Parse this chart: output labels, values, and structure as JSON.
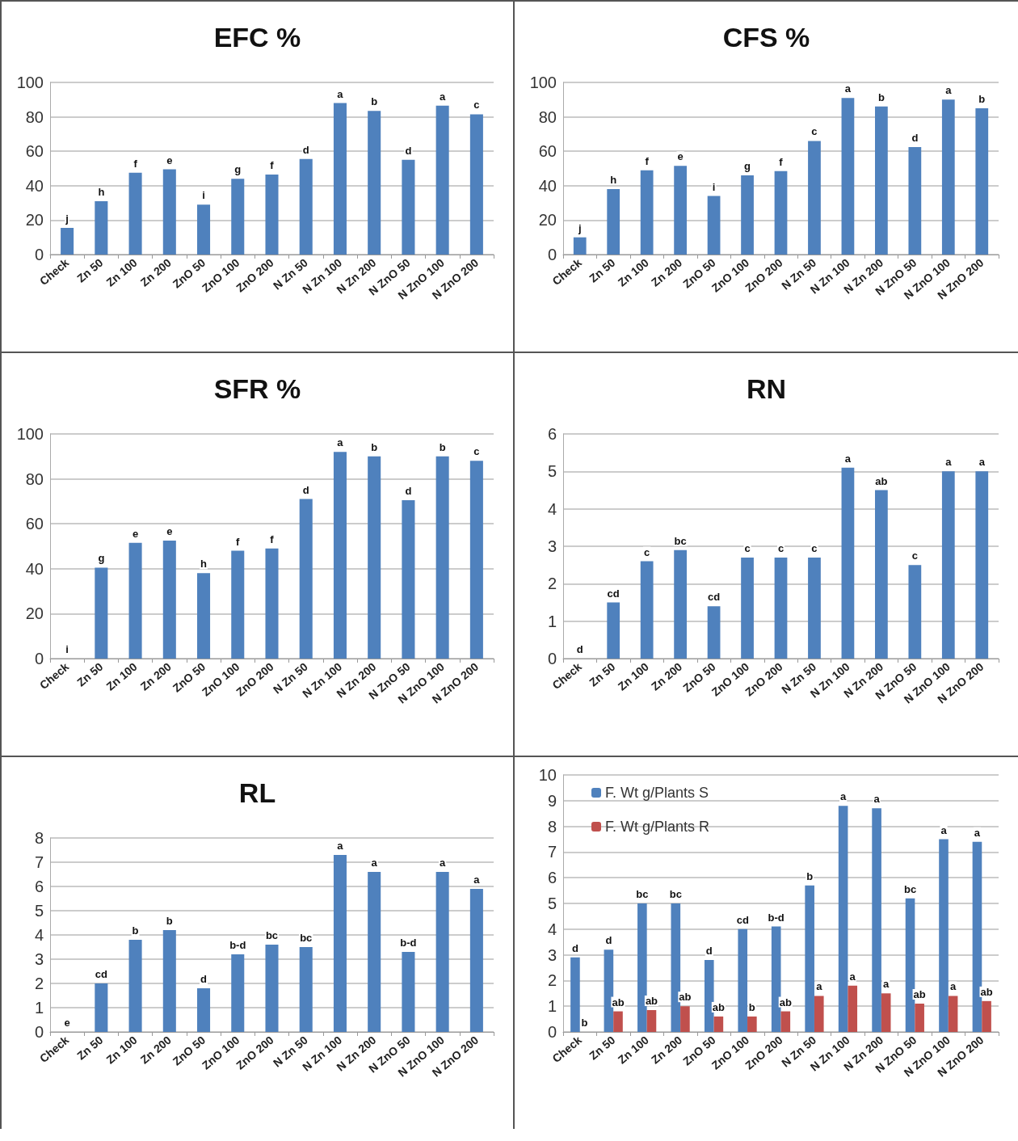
{
  "chart_data": [
    {
      "type": "bar",
      "title": "EFC %",
      "categories": [
        "Check",
        "Zn 50",
        "Zn 100",
        "Zn 200",
        "ZnO 50",
        "ZnO 100",
        "ZnO 200",
        "N Zn 50",
        "N Zn 100",
        "N Zn 200",
        "N ZnO 50",
        "N ZnO 100",
        "N ZnO 200"
      ],
      "color": "#4f81bd",
      "values": [
        15.5,
        31,
        47.5,
        49.5,
        29,
        44,
        46.5,
        55.5,
        88,
        83.5,
        55,
        86.5,
        81.5
      ],
      "value_labels": [
        "j",
        "h",
        "f",
        "e",
        "i",
        "g",
        "f",
        "d",
        "a",
        "b",
        "d",
        "a",
        "c"
      ],
      "ylim": [
        0,
        100
      ],
      "yticks": [
        0,
        20,
        40,
        60,
        80,
        100
      ],
      "grid": "y"
    },
    {
      "type": "bar",
      "title": "CFS %",
      "categories": [
        "Check",
        "Zn 50",
        "Zn 100",
        "Zn 200",
        "ZnO 50",
        "ZnO 100",
        "ZnO 200",
        "N Zn 50",
        "N Zn 100",
        "N Zn 200",
        "N ZnO 50",
        "N ZnO 100",
        "N ZnO 200"
      ],
      "color": "#4f81bd",
      "values": [
        10,
        38,
        49,
        51.5,
        34,
        46,
        48.5,
        66,
        91,
        86,
        62.5,
        90,
        85
      ],
      "value_labels": [
        "j",
        "h",
        "f",
        "e",
        "i",
        "g",
        "f",
        "c",
        "a",
        "b",
        "d",
        "a",
        "b"
      ],
      "ylim": [
        0,
        100
      ],
      "yticks": [
        0,
        20,
        40,
        60,
        80,
        100
      ],
      "grid": "y"
    },
    {
      "type": "bar",
      "title": "SFR %",
      "categories": [
        "Check",
        "Zn 50",
        "Zn 100",
        "Zn 200",
        "ZnO 50",
        "ZnO 100",
        "ZnO 200",
        "N Zn 50",
        "N Zn 100",
        "N Zn 200",
        "N ZnO 50",
        "N ZnO 100",
        "N ZnO 200"
      ],
      "color": "#4f81bd",
      "values": [
        0,
        40.5,
        51.5,
        52.5,
        38,
        48,
        49,
        71,
        92,
        90,
        70.5,
        90,
        88
      ],
      "value_labels": [
        "i",
        "g",
        "e",
        "e",
        "h",
        "f",
        "f",
        "d",
        "a",
        "b",
        "d",
        "b",
        "c"
      ],
      "ylim": [
        0,
        100
      ],
      "yticks": [
        0,
        20,
        40,
        60,
        80,
        100
      ],
      "grid": "y"
    },
    {
      "type": "bar",
      "title": "RN",
      "categories": [
        "Check",
        "Zn 50",
        "Zn 100",
        "Zn 200",
        "ZnO 50",
        "ZnO 100",
        "ZnO 200",
        "N Zn 50",
        "N Zn 100",
        "N Zn 200",
        "N ZnO 50",
        "N ZnO 100",
        "N ZnO 200"
      ],
      "color": "#4f81bd",
      "values": [
        0,
        1.5,
        2.6,
        2.9,
        1.4,
        2.7,
        2.7,
        2.7,
        5.1,
        4.5,
        2.5,
        5,
        5
      ],
      "value_labels": [
        "d",
        "cd",
        "c",
        "bc",
        "cd",
        "c",
        "c",
        "c",
        "a",
        "ab",
        "c",
        "a",
        "a"
      ],
      "ylim": [
        0,
        6
      ],
      "yticks": [
        0,
        1,
        2,
        3,
        4,
        5,
        6
      ],
      "grid": "y"
    },
    {
      "type": "bar",
      "title": "RL",
      "categories": [
        "Check",
        "Zn 50",
        "Zn 100",
        "Zn 200",
        "ZnO 50",
        "ZnO 100",
        "ZnO 200",
        "N Zn 50",
        "N Zn 100",
        "N Zn 200",
        "N ZnO 50",
        "N ZnO 100",
        "N ZnO 200"
      ],
      "color": "#4f81bd",
      "values": [
        0,
        2,
        3.8,
        4.2,
        1.8,
        3.2,
        3.6,
        3.5,
        7.3,
        6.6,
        3.3,
        6.6,
        5.9
      ],
      "value_labels": [
        "e",
        "cd",
        "b",
        "b",
        "d",
        "b-d",
        "bc",
        "bc",
        "a",
        "a",
        "b-d",
        "a",
        "a"
      ],
      "ylim": [
        0,
        8
      ],
      "yticks": [
        0,
        1,
        2,
        3,
        4,
        5,
        6,
        7,
        8
      ],
      "grid": "y"
    },
    {
      "type": "bar",
      "categories": [
        "Check",
        "Zn 50",
        "Zn 100",
        "Zn 200",
        "ZnO 50",
        "ZnO 100",
        "ZnO 200",
        "N Zn 50",
        "N Zn 100",
        "N Zn 200",
        "N ZnO 50",
        "N ZnO 100",
        "N ZnO 200"
      ],
      "series": [
        {
          "name": "F. Wt g/Plants S",
          "color": "#4f81bd",
          "values": [
            2.9,
            3.2,
            5,
            5,
            2.8,
            4,
            4.1,
            5.7,
            8.8,
            8.7,
            5.2,
            7.5,
            7.4
          ],
          "value_labels": [
            "d",
            "d",
            "bc",
            "bc",
            "d",
            "cd",
            "b-d",
            "b",
            "a",
            "a",
            "bc",
            "a",
            "a"
          ]
        },
        {
          "name": "F. Wt g/Plants R",
          "color": "#c0504d",
          "values": [
            0,
            0.8,
            0.85,
            1,
            0.6,
            0.6,
            0.8,
            1.4,
            1.8,
            1.5,
            1.1,
            1.4,
            1.2
          ],
          "value_labels": [
            "b",
            "ab",
            "ab",
            "ab",
            "ab",
            "b",
            "ab",
            "a",
            "a",
            "a",
            "ab",
            "a",
            "ab"
          ]
        }
      ],
      "ylim": [
        0,
        10
      ],
      "yticks": [
        0,
        1,
        2,
        3,
        4,
        5,
        6,
        7,
        8,
        9,
        10
      ],
      "grid": "y",
      "legend": "top left"
    }
  ]
}
